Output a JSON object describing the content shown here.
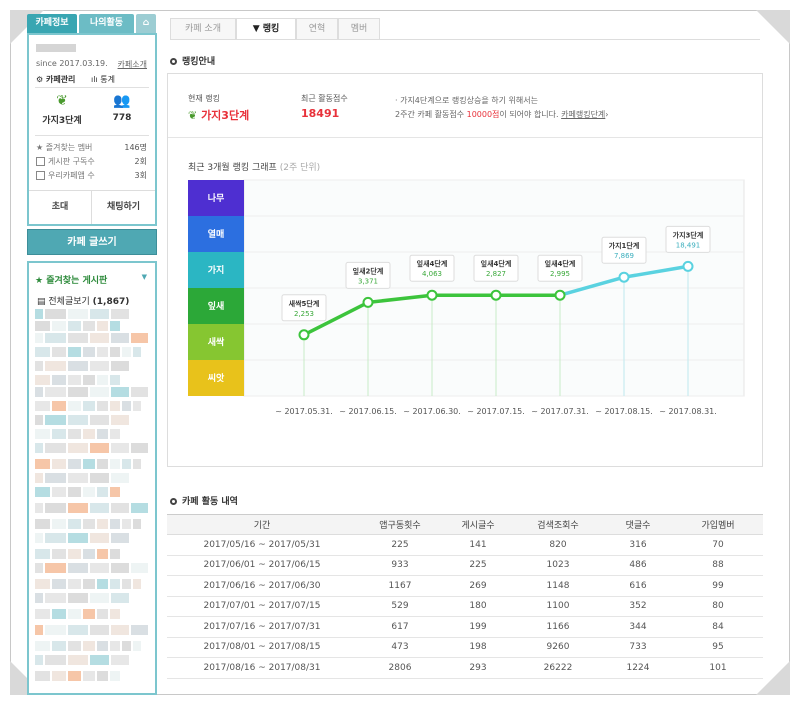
{
  "sidebar": {
    "tabs": [
      "카페정보",
      "나의활동"
    ],
    "since": "since 2017.03.19.",
    "intro_link": "카페소개",
    "manage_label": "카페관리",
    "stats_label": "통계",
    "level_label": "가지3단계",
    "member_count": "778",
    "info": [
      {
        "label": "즐겨찾는 멤버",
        "value": "146명"
      },
      {
        "label": "게시판 구독수",
        "value": "2회"
      },
      {
        "label": "우리카페앱 수",
        "value": "3회"
      }
    ],
    "invite_btn": "초대",
    "chat_btn": "채팅하기",
    "write_btn": "카페 글쓰기",
    "fav_title": "즐겨찾는 게시판",
    "fav_all": "전체글보기",
    "fav_count": "(1,867)"
  },
  "tabs": [
    "카페 소개",
    "랭킹",
    "연혁",
    "멤버"
  ],
  "ranking": {
    "section_title": "랭킹안내",
    "current_label": "현재 랭킹",
    "current_value": "가지3단계",
    "score_label": "최근 활동점수",
    "score_value": "18491",
    "note_line1": "· 가지4단계으로 랭킹상승을 하기 위해서는",
    "note_line2_pre": "2주간 카페 활동점수 ",
    "note_line2_red": "10000점",
    "note_line2_post": "이 되어야 합니다.",
    "note_link": "카페랭킹단계",
    "graph_title": "최근 3개월 랭킹 그래프",
    "graph_sub": "(2주 단위)"
  },
  "chart_data": {
    "type": "line",
    "title": "최근 3개월 랭킹 그래프",
    "levels": [
      "나무",
      "열매",
      "가지",
      "잎새",
      "새싹",
      "씨앗"
    ],
    "level_colors": [
      "#4e2fd1",
      "#2c6fe0",
      "#2bb6c3",
      "#2ca838",
      "#86c631",
      "#e8c21b"
    ],
    "categories": [
      "~ 2017.05.31.",
      "~ 2017.06.15.",
      "~ 2017.06.30.",
      "~ 2017.07.15.",
      "~ 2017.07.31.",
      "~ 2017.08.15.",
      "~ 2017.08.31."
    ],
    "point_labels": [
      "새싹5단계",
      "잎새2단계",
      "잎새4단계",
      "잎새4단계",
      "잎새4단계",
      "가지1단계",
      "가지3단계"
    ],
    "point_values": [
      "2,253",
      "3,371",
      "4,063",
      "2,827",
      "2,995",
      "7,869",
      "18,491"
    ],
    "level_index": [
      4.3,
      3.4,
      3.2,
      3.2,
      3.2,
      2.7,
      2.4
    ]
  },
  "activity": {
    "section_title": "카페 활동 내역",
    "headers": [
      "기간",
      "앱구동횟수",
      "게시글수",
      "검색조회수",
      "댓글수",
      "가입멤버"
    ],
    "rows": [
      [
        "2017/05/16 ~ 2017/05/31",
        "225",
        "141",
        "820",
        "316",
        "70"
      ],
      [
        "2017/06/01 ~ 2017/06/15",
        "933",
        "225",
        "1023",
        "486",
        "88"
      ],
      [
        "2017/06/16 ~ 2017/06/30",
        "1167",
        "269",
        "1148",
        "616",
        "99"
      ],
      [
        "2017/07/01 ~ 2017/07/15",
        "529",
        "180",
        "1100",
        "352",
        "80"
      ],
      [
        "2017/07/16 ~ 2017/07/31",
        "617",
        "199",
        "1166",
        "344",
        "84"
      ],
      [
        "2017/08/01 ~ 2017/08/15",
        "473",
        "198",
        "9260",
        "733",
        "95"
      ],
      [
        "2017/08/16 ~ 2017/08/31",
        "2806",
        "293",
        "26222",
        "1224",
        "101"
      ]
    ]
  }
}
